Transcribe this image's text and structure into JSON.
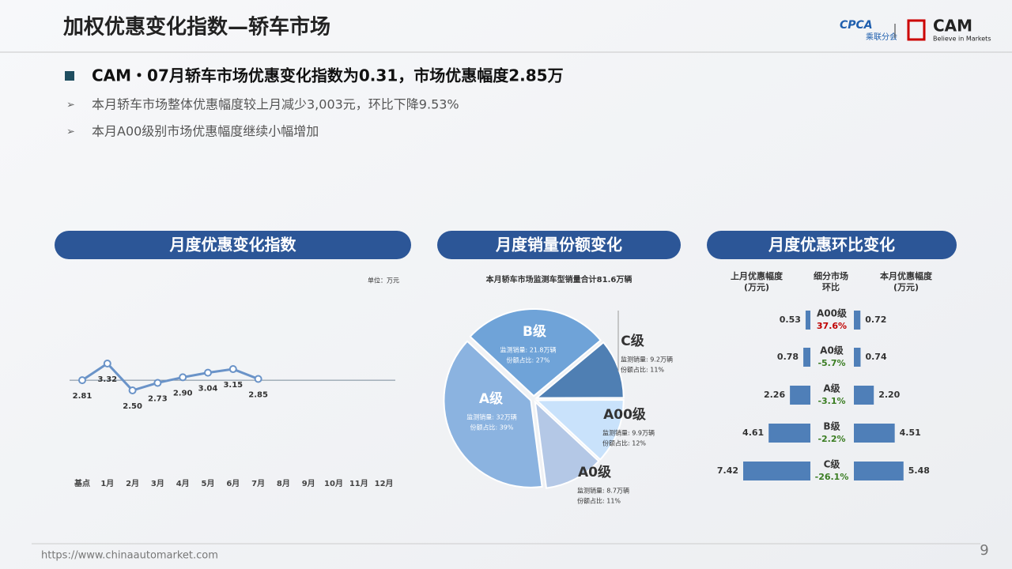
{
  "title": "加权优惠变化指数—轿车市场",
  "logos": [
    "CPCA",
    "乘联分会",
    "CAM",
    "Believe in Markets"
  ],
  "headline": "CAM・07月轿车市场优惠变化指数为0.31，市场优惠幅度2.85万",
  "bullets": [
    "本月轿车市场整体优惠幅度较上月减少3,003元，环比下降9.53%",
    "本月A00级别市场优惠幅度继续小幅增加"
  ],
  "footer": "https://www.chinaautomarket.com",
  "page_number": 9,
  "chart_data": [
    {
      "type": "line",
      "title": "月度优惠变化指数",
      "unit": "单位：万元",
      "color": "#6a93c8",
      "categories": [
        "基点",
        "1月",
        "2月",
        "3月",
        "4月",
        "5月",
        "6月",
        "7月",
        "8月",
        "9月",
        "10月",
        "11月",
        "12月"
      ],
      "values": [
        2.81,
        3.32,
        2.5,
        2.73,
        2.9,
        3.04,
        3.15,
        2.85,
        null,
        null,
        null,
        null,
        null
      ],
      "value_labels": [
        "2.81",
        "3.32",
        "2.50",
        "2.73",
        "2.90",
        "3.04",
        "3.15",
        "2.85",
        null,
        null,
        null,
        null,
        null
      ]
    },
    {
      "type": "pie",
      "title": "月度销量份额变化",
      "subtitle": "本月轿车市场监测车型销量合计81.6万辆",
      "categories": [
        "B级",
        "C级",
        "A00级",
        "A0级",
        "A级"
      ],
      "values": [
        27,
        11,
        12,
        11,
        39
      ],
      "value_labels": [
        "份额占比: 27%",
        "份额占比: 11%",
        "份额占比: 12%",
        "份额占比: 11%",
        "份额占比: 39%"
      ],
      "volume_labels": [
        "监测销量: 21.8万辆",
        "监测销量: 9.2万辆",
        "监测销量: 9.9万辆",
        "监测销量: 8.7万辆",
        "监测销量: 32万辆"
      ],
      "colors": [
        "#6fa3d8",
        "#4f7fb3",
        "#c9e2fb",
        "#b4c8e6",
        "#8bb3e0"
      ]
    },
    {
      "type": "diverging-bar",
      "title": "月度优惠环比变化",
      "categories": [
        "A00级",
        "A0级",
        "A级",
        "B级",
        "C级"
      ],
      "series": [
        {
          "name": [
            "上月优惠幅度",
            "(万元)"
          ],
          "color": "#4f7fb8",
          "values": [
            0.53,
            0.78,
            2.26,
            4.61,
            7.42
          ],
          "value_labels": [
            "0.53",
            "0.78",
            "2.26",
            "4.61",
            "7.42"
          ]
        },
        {
          "name": [
            "本月优惠幅度",
            "(万元)"
          ],
          "color": "#4f7fb8",
          "values": [
            0.72,
            0.74,
            2.2,
            4.51,
            5.48
          ],
          "value_labels": [
            "0.72",
            "0.74",
            "2.20",
            "4.51",
            "5.48"
          ]
        }
      ],
      "change_name": [
        "细分市场",
        "环比"
      ],
      "changes": [
        37.6,
        -5.7,
        -3.1,
        -2.2,
        -26.1
      ],
      "change_labels": [
        "37.6%",
        "-5.7%",
        "-3.1%",
        "-2.2%",
        "-26.1%"
      ],
      "positive_color": "#c00000",
      "negative_color": "#3a7d22"
    }
  ]
}
